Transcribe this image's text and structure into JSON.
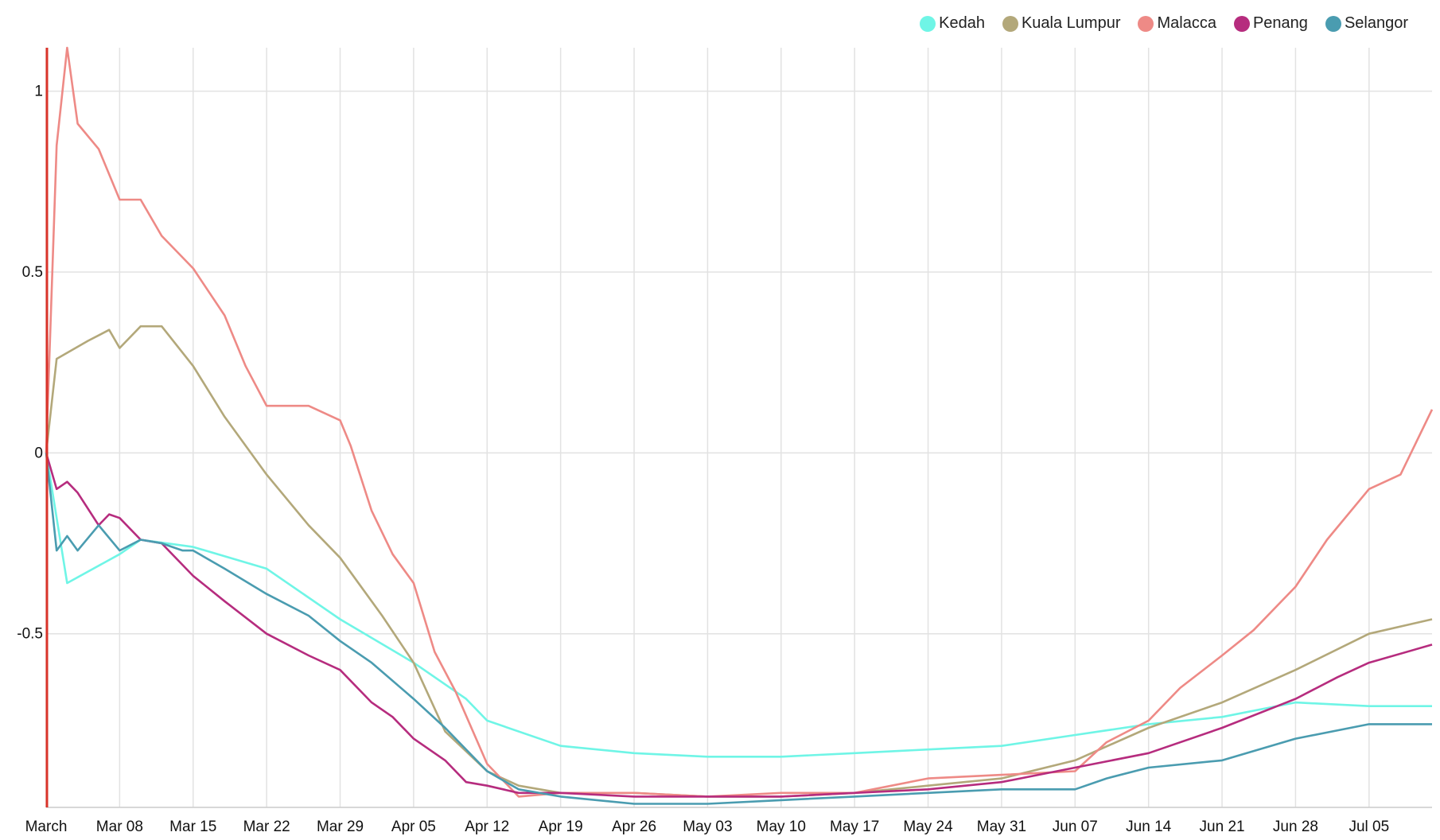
{
  "chart_data": {
    "type": "line",
    "title": "",
    "xlabel": "",
    "ylabel": "",
    "x_start": "March",
    "x_ticks": [
      "March",
      "Mar 08",
      "Mar 15",
      "Mar 22",
      "Mar 29",
      "Apr 05",
      "Apr 12",
      "Apr 19",
      "Apr 26",
      "May 03",
      "May 10",
      "May 17",
      "May 24",
      "May 31",
      "Jun 07",
      "Jun 14",
      "Jun 21",
      "Jun 28",
      "Jul 05"
    ],
    "y_ticks": [
      1,
      0.5,
      0,
      -0.5
    ],
    "y_tick_labels": [
      "1",
      "0.5",
      "0",
      "-0.5"
    ],
    "ylim": [
      -0.98,
      1.12
    ],
    "grid": true,
    "legend_position": "top-right",
    "marker_line_color": "#d9332a",
    "series": [
      {
        "name": "Kedah",
        "color": "#6ff5e6",
        "x": [
          "Mar 01",
          "Mar 03",
          "Mar 08",
          "Mar 10",
          "Mar 15",
          "Mar 22",
          "Mar 29",
          "Apr 05",
          "Apr 10",
          "Apr 12",
          "Apr 19",
          "Apr 26",
          "May 03",
          "May 10",
          "May 17",
          "May 24",
          "May 31",
          "Jun 07",
          "Jun 14",
          "Jun 21",
          "Jun 28",
          "Jul 05",
          "Jul 11"
        ],
        "values": [
          0,
          -0.36,
          -0.28,
          -0.24,
          -0.26,
          -0.32,
          -0.46,
          -0.58,
          -0.68,
          -0.74,
          -0.81,
          -0.83,
          -0.84,
          -0.84,
          -0.83,
          -0.82,
          -0.81,
          -0.78,
          -0.75,
          -0.73,
          -0.69,
          -0.7,
          -0.7
        ]
      },
      {
        "name": "Kuala Lumpur",
        "color": "#b3a87a",
        "x": [
          "Mar 01",
          "Mar 02",
          "Mar 05",
          "Mar 07",
          "Mar 08",
          "Mar 10",
          "Mar 12",
          "Mar 15",
          "Mar 18",
          "Mar 22",
          "Mar 26",
          "Mar 29",
          "Apr 02",
          "Apr 05",
          "Apr 08",
          "Apr 12",
          "Apr 15",
          "Apr 19",
          "Apr 26",
          "May 03",
          "May 10",
          "May 17",
          "May 24",
          "May 31",
          "Jun 07",
          "Jun 14",
          "Jun 21",
          "Jun 28",
          "Jul 05",
          "Jul 11"
        ],
        "values": [
          0,
          0.26,
          0.31,
          0.34,
          0.29,
          0.35,
          0.35,
          0.24,
          0.1,
          -0.06,
          -0.2,
          -0.29,
          -0.45,
          -0.58,
          -0.77,
          -0.88,
          -0.92,
          -0.94,
          -0.94,
          -0.95,
          -0.95,
          -0.94,
          -0.92,
          -0.9,
          -0.85,
          -0.76,
          -0.69,
          -0.6,
          -0.5,
          -0.46
        ]
      },
      {
        "name": "Malacca",
        "color": "#ee8a86",
        "x": [
          "Mar 01",
          "Mar 02",
          "Mar 03",
          "Mar 04",
          "Mar 06",
          "Mar 08",
          "Mar 10",
          "Mar 12",
          "Mar 15",
          "Mar 18",
          "Mar 20",
          "Mar 22",
          "Mar 26",
          "Mar 29",
          "Mar 30",
          "Apr 01",
          "Apr 03",
          "Apr 05",
          "Apr 07",
          "Apr 09",
          "Apr 12",
          "Apr 15",
          "Apr 19",
          "Apr 26",
          "May 03",
          "May 10",
          "May 17",
          "May 24",
          "May 31",
          "Jun 07",
          "Jun 10",
          "Jun 14",
          "Jun 17",
          "Jun 21",
          "Jun 24",
          "Jun 28",
          "Jul 01",
          "Jul 05",
          "Jul 08",
          "Jul 11"
        ],
        "values": [
          0,
          0.85,
          1.12,
          0.91,
          0.84,
          0.7,
          0.7,
          0.6,
          0.51,
          0.38,
          0.24,
          0.13,
          0.13,
          0.09,
          0.02,
          -0.16,
          -0.28,
          -0.36,
          -0.55,
          -0.66,
          -0.86,
          -0.95,
          -0.94,
          -0.94,
          -0.95,
          -0.94,
          -0.94,
          -0.9,
          -0.89,
          -0.88,
          -0.8,
          -0.74,
          -0.65,
          -0.56,
          -0.49,
          -0.37,
          -0.24,
          -0.1,
          -0.06,
          0.12
        ]
      },
      {
        "name": "Penang",
        "color": "#b62c7e",
        "x": [
          "Mar 01",
          "Mar 02",
          "Mar 03",
          "Mar 04",
          "Mar 06",
          "Mar 07",
          "Mar 08",
          "Mar 10",
          "Mar 12",
          "Mar 15",
          "Mar 18",
          "Mar 22",
          "Mar 26",
          "Mar 29",
          "Apr 01",
          "Apr 03",
          "Apr 05",
          "Apr 08",
          "Apr 10",
          "Apr 12",
          "Apr 15",
          "Apr 19",
          "Apr 26",
          "May 03",
          "May 10",
          "May 17",
          "May 24",
          "May 31",
          "Jun 07",
          "Jun 14",
          "Jun 21",
          "Jun 28",
          "Jul 02",
          "Jul 05",
          "Jul 11"
        ],
        "values": [
          0,
          -0.1,
          -0.08,
          -0.11,
          -0.2,
          -0.17,
          -0.18,
          -0.24,
          -0.25,
          -0.34,
          -0.41,
          -0.5,
          -0.56,
          -0.6,
          -0.69,
          -0.73,
          -0.79,
          -0.85,
          -0.91,
          -0.92,
          -0.94,
          -0.94,
          -0.95,
          -0.95,
          -0.95,
          -0.94,
          -0.93,
          -0.91,
          -0.87,
          -0.83,
          -0.76,
          -0.68,
          -0.62,
          -0.58,
          -0.53
        ]
      },
      {
        "name": "Selangor",
        "color": "#4a9cb0",
        "x": [
          "Mar 01",
          "Mar 02",
          "Mar 03",
          "Mar 04",
          "Mar 06",
          "Mar 08",
          "Mar 10",
          "Mar 12",
          "Mar 14",
          "Mar 15",
          "Mar 18",
          "Mar 22",
          "Mar 26",
          "Mar 29",
          "Apr 01",
          "Apr 05",
          "Apr 08",
          "Apr 12",
          "Apr 15",
          "Apr 19",
          "Apr 26",
          "May 03",
          "May 10",
          "May 17",
          "May 24",
          "May 31",
          "Jun 07",
          "Jun 10",
          "Jun 14",
          "Jun 21",
          "Jun 28",
          "Jul 05",
          "Jul 11"
        ],
        "values": [
          0,
          -0.27,
          -0.23,
          -0.27,
          -0.2,
          -0.27,
          -0.24,
          -0.25,
          -0.27,
          -0.27,
          -0.32,
          -0.39,
          -0.45,
          -0.52,
          -0.58,
          -0.68,
          -0.76,
          -0.88,
          -0.93,
          -0.95,
          -0.97,
          -0.97,
          -0.96,
          -0.95,
          -0.94,
          -0.93,
          -0.93,
          -0.9,
          -0.87,
          -0.85,
          -0.79,
          -0.75,
          -0.75
        ]
      }
    ]
  }
}
